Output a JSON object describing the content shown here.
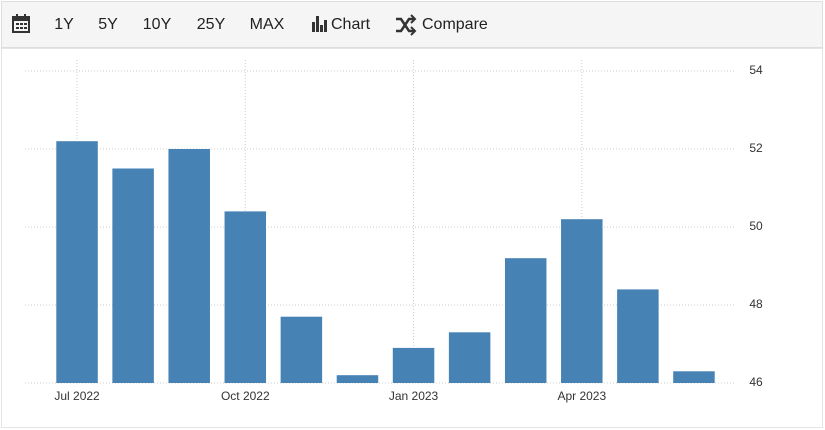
{
  "toolbar": {
    "ranges": [
      "1Y",
      "5Y",
      "10Y",
      "25Y",
      "MAX"
    ],
    "chart": "Chart",
    "compare": "Compare"
  },
  "chart_data": {
    "type": "bar",
    "categories": [
      "Jul 2022",
      null,
      null,
      "Oct 2022",
      null,
      null,
      "Jan 2023",
      null,
      null,
      "Apr 2023",
      null,
      null
    ],
    "values": [
      52.2,
      51.5,
      52.0,
      50.4,
      47.7,
      46.2,
      46.9,
      47.3,
      49.2,
      50.2,
      48.4,
      46.3
    ],
    "color": "#4682b4",
    "ylim": [
      46,
      54
    ],
    "yticks": [
      46,
      48,
      50,
      52,
      54
    ],
    "grid": true
  }
}
